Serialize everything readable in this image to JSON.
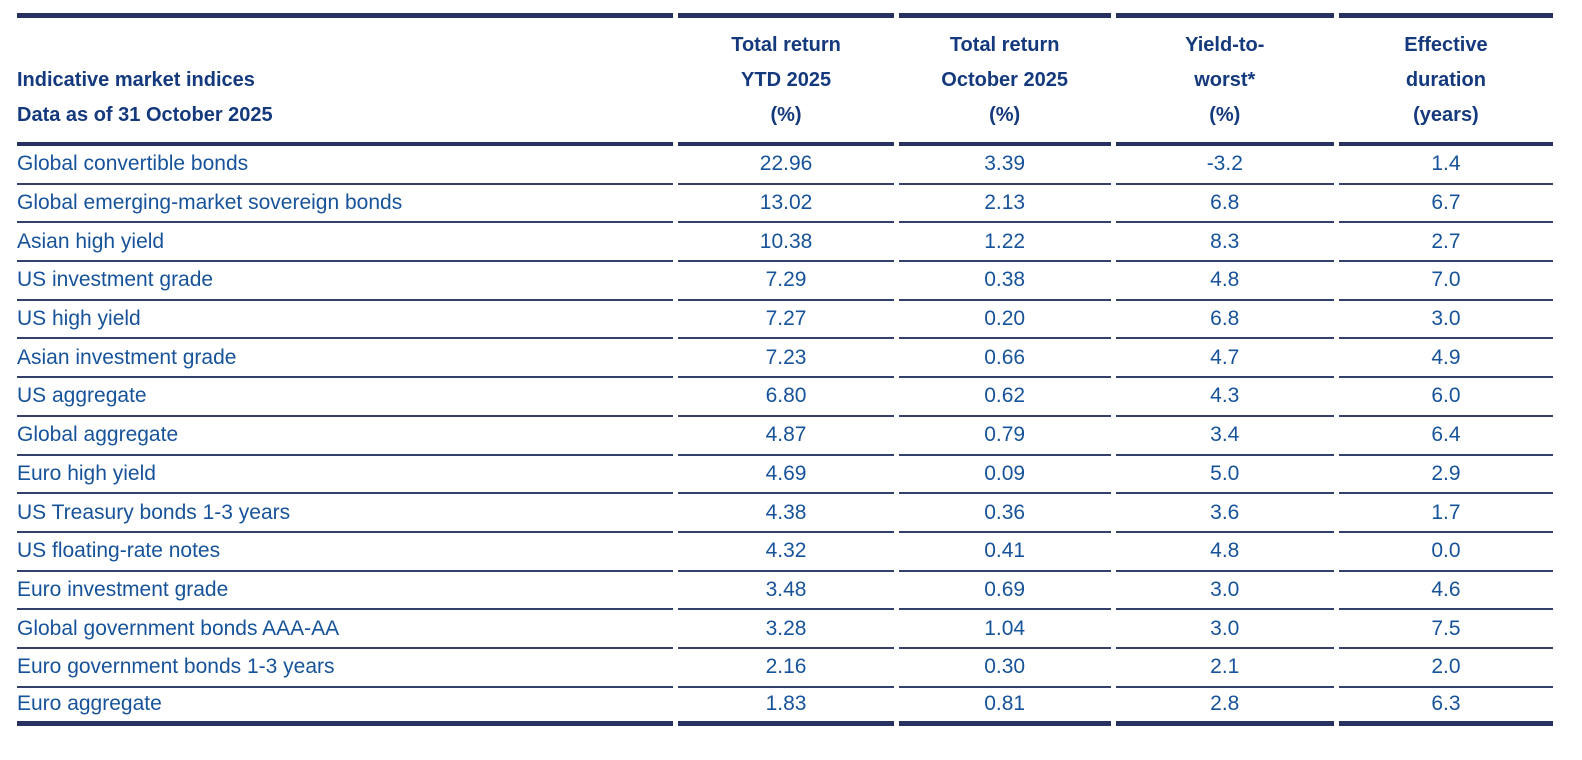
{
  "table": {
    "header": {
      "label_line1": "Indicative market indices",
      "label_line2": "Data as of 31 October 2025",
      "columns": [
        {
          "lines": [
            "Total return",
            "YTD 2025",
            "(%)"
          ]
        },
        {
          "lines": [
            "Total return",
            "October 2025",
            "(%)"
          ]
        },
        {
          "lines": [
            "Yield-to-",
            "worst*",
            "(%)"
          ]
        },
        {
          "lines": [
            "Effective",
            "duration",
            "(years)"
          ]
        }
      ]
    },
    "rows": [
      {
        "label": "Global convertible bonds",
        "values": [
          "22.96",
          "3.39",
          "-3.2",
          "1.4"
        ]
      },
      {
        "label": "Global emerging-market sovereign bonds",
        "values": [
          "13.02",
          "2.13",
          "6.8",
          "6.7"
        ]
      },
      {
        "label": "Asian high yield",
        "values": [
          "10.38",
          "1.22",
          "8.3",
          "2.7"
        ]
      },
      {
        "label": "US investment grade",
        "values": [
          "7.29",
          "0.38",
          "4.8",
          "7.0"
        ]
      },
      {
        "label": "US high yield",
        "values": [
          "7.27",
          "0.20",
          "6.8",
          "3.0"
        ]
      },
      {
        "label": "Asian investment grade",
        "values": [
          "7.23",
          "0.66",
          "4.7",
          "4.9"
        ]
      },
      {
        "label": "US aggregate",
        "values": [
          "6.80",
          "0.62",
          "4.3",
          "6.0"
        ]
      },
      {
        "label": "Global aggregate",
        "values": [
          "4.87",
          "0.79",
          "3.4",
          "6.4"
        ]
      },
      {
        "label": "Euro high yield",
        "values": [
          "4.69",
          "0.09",
          "5.0",
          "2.9"
        ]
      },
      {
        "label": "US Treasury bonds 1-3 years",
        "values": [
          "4.38",
          "0.36",
          "3.6",
          "1.7"
        ]
      },
      {
        "label": "US floating-rate notes",
        "values": [
          "4.32",
          "0.41",
          "4.8",
          "0.0"
        ]
      },
      {
        "label": "Euro investment grade",
        "values": [
          "3.48",
          "0.69",
          "3.0",
          "4.6"
        ]
      },
      {
        "label": "Global government bonds AAA-AA",
        "values": [
          "3.28",
          "1.04",
          "3.0",
          "7.5"
        ]
      },
      {
        "label": "Euro government bonds 1-3 years",
        "values": [
          "2.16",
          "0.30",
          "2.1",
          "2.0"
        ]
      },
      {
        "label": "Euro aggregate",
        "values": [
          "1.83",
          "0.81",
          "2.8",
          "6.3"
        ]
      }
    ]
  },
  "chart_data": {
    "type": "table",
    "title": "Indicative market indices — Data as of 31 October 2025",
    "columns": [
      "Indicative market indices",
      "Total return YTD 2025 (%)",
      "Total return October 2025 (%)",
      "Yield-to-worst* (%)",
      "Effective duration (years)"
    ],
    "rows": [
      [
        "Global convertible bonds",
        22.96,
        3.39,
        -3.2,
        1.4
      ],
      [
        "Global emerging-market sovereign bonds",
        13.02,
        2.13,
        6.8,
        6.7
      ],
      [
        "Asian high yield",
        10.38,
        1.22,
        8.3,
        2.7
      ],
      [
        "US investment grade",
        7.29,
        0.38,
        4.8,
        7.0
      ],
      [
        "US high yield",
        7.27,
        0.2,
        6.8,
        3.0
      ],
      [
        "Asian investment grade",
        7.23,
        0.66,
        4.7,
        4.9
      ],
      [
        "US aggregate",
        6.8,
        0.62,
        4.3,
        6.0
      ],
      [
        "Global aggregate",
        4.87,
        0.79,
        3.4,
        6.4
      ],
      [
        "Euro high yield",
        4.69,
        0.09,
        5.0,
        2.9
      ],
      [
        "US Treasury bonds 1-3 years",
        4.38,
        0.36,
        3.6,
        1.7
      ],
      [
        "US floating-rate notes",
        4.32,
        0.41,
        4.8,
        0.0
      ],
      [
        "Euro investment grade",
        3.48,
        0.69,
        3.0,
        4.6
      ],
      [
        "Global government bonds AAA-AA",
        3.28,
        1.04,
        3.0,
        7.5
      ],
      [
        "Euro government bonds 1-3 years",
        2.16,
        0.3,
        2.1,
        2.0
      ],
      [
        "Euro aggregate",
        1.83,
        0.81,
        2.8,
        6.3
      ]
    ]
  },
  "colors": {
    "header_text": "#14397C",
    "body_text": "#17539A",
    "thick_border": "#26315F",
    "thin_border": "#33406B",
    "background": "#FFFFFF"
  }
}
